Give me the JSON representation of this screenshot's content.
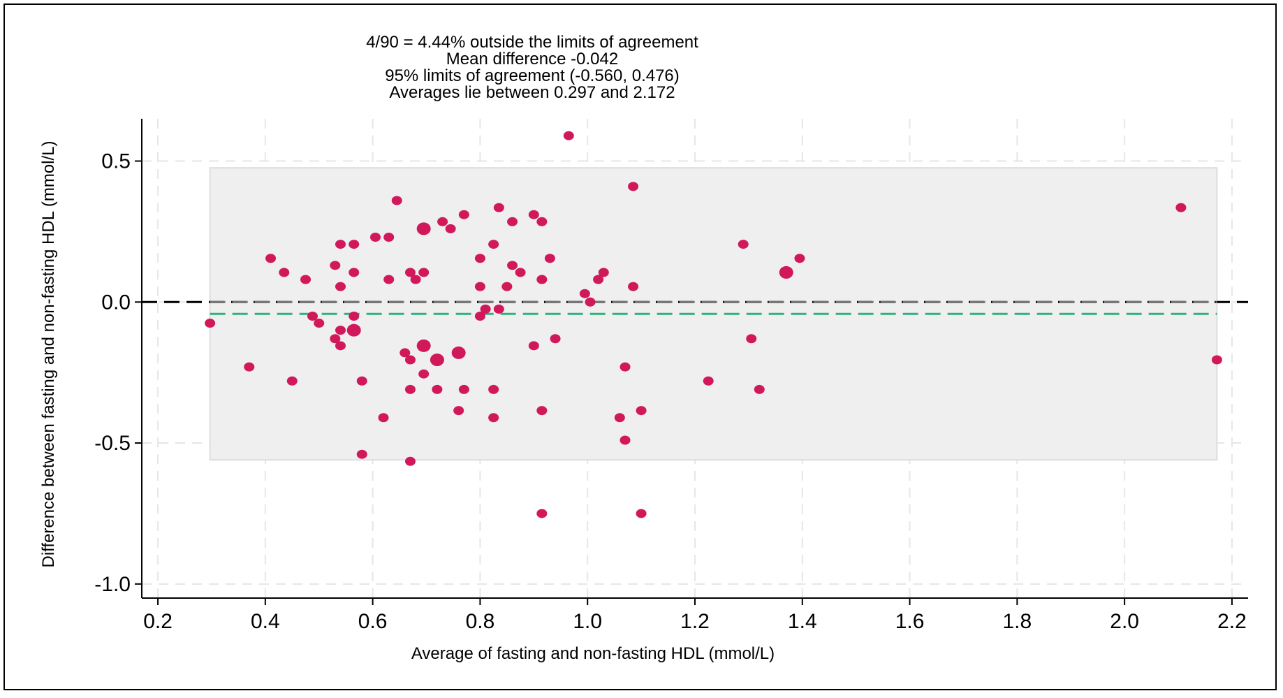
{
  "chart_data": {
    "type": "scatter",
    "title_lines": [
      "4/90 =   4.44% outside the limits of agreement",
      "Mean difference -0.042",
      "95% limits of agreement (-0.560, 0.476)",
      "Averages lie between 0.297 and 2.172"
    ],
    "xlabel": "Average of fasting and non-fasting HDL (mmol/L)",
    "ylabel": "Difference between fasting and non-fasting HDL (mmol/L)",
    "xlim": [
      0.17,
      2.23
    ],
    "ylim": [
      -1.05,
      0.65
    ],
    "xticks": [
      0.2,
      0.4,
      0.6,
      0.8,
      1.0,
      1.2,
      1.4,
      1.6,
      1.8,
      2.0,
      2.2
    ],
    "xtick_labels": [
      "0.2",
      "0.4",
      "0.6",
      "0.8",
      "1.0",
      "1.2",
      "1.4",
      "1.6",
      "1.8",
      "2.0",
      "2.2"
    ],
    "yticks": [
      0.5,
      0.0,
      -0.5,
      -1.0
    ],
    "ytick_labels": [
      "0.5",
      "0.0",
      "-0.5",
      "-1.0"
    ],
    "grid": true,
    "mean_difference": -0.042,
    "limits_of_agreement": [
      -0.56,
      0.476
    ],
    "agreement_band_x": [
      0.297,
      2.172
    ],
    "zero_line": 0,
    "colors": {
      "points": "#D0185A",
      "band": "#EFEFEF",
      "band_edge": "#DDDDDD",
      "mean_line": "#2DB37A",
      "zero_line": "#000000",
      "zero_line_inner": "#777777",
      "grid": "#E6E6E6"
    },
    "points": [
      {
        "x": 0.297,
        "y": -0.075,
        "n": 1
      },
      {
        "x": 0.37,
        "y": -0.23,
        "n": 1
      },
      {
        "x": 0.41,
        "y": 0.155,
        "n": 1
      },
      {
        "x": 0.435,
        "y": 0.105,
        "n": 1
      },
      {
        "x": 0.45,
        "y": -0.28,
        "n": 1
      },
      {
        "x": 0.475,
        "y": 0.08,
        "n": 1
      },
      {
        "x": 0.488,
        "y": -0.05,
        "n": 1
      },
      {
        "x": 0.5,
        "y": -0.075,
        "n": 1
      },
      {
        "x": 0.53,
        "y": 0.13,
        "n": 1
      },
      {
        "x": 0.53,
        "y": -0.13,
        "n": 1
      },
      {
        "x": 0.54,
        "y": 0.205,
        "n": 1
      },
      {
        "x": 0.54,
        "y": 0.055,
        "n": 1
      },
      {
        "x": 0.54,
        "y": -0.1,
        "n": 1
      },
      {
        "x": 0.54,
        "y": -0.155,
        "n": 1
      },
      {
        "x": 0.565,
        "y": 0.205,
        "n": 1
      },
      {
        "x": 0.565,
        "y": 0.105,
        "n": 1
      },
      {
        "x": 0.565,
        "y": -0.05,
        "n": 1
      },
      {
        "x": 0.565,
        "y": -0.1,
        "n": 2
      },
      {
        "x": 0.58,
        "y": -0.28,
        "n": 1
      },
      {
        "x": 0.58,
        "y": -0.54,
        "n": 1
      },
      {
        "x": 0.605,
        "y": 0.23,
        "n": 1
      },
      {
        "x": 0.62,
        "y": -0.41,
        "n": 1
      },
      {
        "x": 0.63,
        "y": 0.23,
        "n": 1
      },
      {
        "x": 0.63,
        "y": 0.08,
        "n": 1
      },
      {
        "x": 0.645,
        "y": 0.36,
        "n": 1
      },
      {
        "x": 0.66,
        "y": -0.18,
        "n": 1
      },
      {
        "x": 0.67,
        "y": 0.105,
        "n": 1
      },
      {
        "x": 0.67,
        "y": -0.205,
        "n": 1
      },
      {
        "x": 0.67,
        "y": -0.31,
        "n": 1
      },
      {
        "x": 0.67,
        "y": -0.565,
        "n": 1
      },
      {
        "x": 0.68,
        "y": 0.08,
        "n": 1
      },
      {
        "x": 0.695,
        "y": 0.26,
        "n": 2
      },
      {
        "x": 0.695,
        "y": 0.105,
        "n": 1
      },
      {
        "x": 0.695,
        "y": -0.155,
        "n": 2
      },
      {
        "x": 0.695,
        "y": -0.255,
        "n": 1
      },
      {
        "x": 0.72,
        "y": -0.205,
        "n": 2
      },
      {
        "x": 0.72,
        "y": -0.31,
        "n": 1
      },
      {
        "x": 0.73,
        "y": 0.285,
        "n": 1
      },
      {
        "x": 0.745,
        "y": 0.26,
        "n": 1
      },
      {
        "x": 0.76,
        "y": -0.18,
        "n": 2
      },
      {
        "x": 0.76,
        "y": -0.385,
        "n": 1
      },
      {
        "x": 0.77,
        "y": 0.31,
        "n": 1
      },
      {
        "x": 0.77,
        "y": -0.31,
        "n": 1
      },
      {
        "x": 0.8,
        "y": 0.155,
        "n": 1
      },
      {
        "x": 0.8,
        "y": 0.055,
        "n": 1
      },
      {
        "x": 0.8,
        "y": -0.05,
        "n": 1
      },
      {
        "x": 0.81,
        "y": -0.025,
        "n": 1
      },
      {
        "x": 0.825,
        "y": 0.205,
        "n": 1
      },
      {
        "x": 0.825,
        "y": -0.31,
        "n": 1
      },
      {
        "x": 0.825,
        "y": -0.41,
        "n": 1
      },
      {
        "x": 0.835,
        "y": 0.335,
        "n": 1
      },
      {
        "x": 0.835,
        "y": -0.025,
        "n": 1
      },
      {
        "x": 0.85,
        "y": 0.055,
        "n": 1
      },
      {
        "x": 0.86,
        "y": 0.285,
        "n": 1
      },
      {
        "x": 0.86,
        "y": 0.13,
        "n": 1
      },
      {
        "x": 0.875,
        "y": 0.105,
        "n": 1
      },
      {
        "x": 0.9,
        "y": 0.31,
        "n": 1
      },
      {
        "x": 0.9,
        "y": -0.155,
        "n": 1
      },
      {
        "x": 0.915,
        "y": 0.285,
        "n": 1
      },
      {
        "x": 0.915,
        "y": 0.08,
        "n": 1
      },
      {
        "x": 0.915,
        "y": -0.385,
        "n": 1
      },
      {
        "x": 0.915,
        "y": -0.75,
        "n": 1
      },
      {
        "x": 0.93,
        "y": 0.155,
        "n": 1
      },
      {
        "x": 0.94,
        "y": -0.13,
        "n": 1
      },
      {
        "x": 0.965,
        "y": 0.59,
        "n": 1
      },
      {
        "x": 0.995,
        "y": 0.03,
        "n": 1
      },
      {
        "x": 1.005,
        "y": 0.0,
        "n": 1
      },
      {
        "x": 1.02,
        "y": 0.08,
        "n": 1
      },
      {
        "x": 1.03,
        "y": 0.105,
        "n": 1
      },
      {
        "x": 1.06,
        "y": -0.41,
        "n": 1
      },
      {
        "x": 1.07,
        "y": -0.23,
        "n": 1
      },
      {
        "x": 1.07,
        "y": -0.49,
        "n": 1
      },
      {
        "x": 1.085,
        "y": 0.41,
        "n": 1
      },
      {
        "x": 1.085,
        "y": 0.055,
        "n": 1
      },
      {
        "x": 1.1,
        "y": -0.385,
        "n": 1
      },
      {
        "x": 1.1,
        "y": -0.75,
        "n": 1
      },
      {
        "x": 1.225,
        "y": -0.28,
        "n": 1
      },
      {
        "x": 1.29,
        "y": 0.205,
        "n": 1
      },
      {
        "x": 1.305,
        "y": -0.13,
        "n": 1
      },
      {
        "x": 1.32,
        "y": -0.31,
        "n": 1
      },
      {
        "x": 1.37,
        "y": 0.105,
        "n": 2
      },
      {
        "x": 1.395,
        "y": 0.155,
        "n": 1
      },
      {
        "x": 2.105,
        "y": 0.335,
        "n": 1
      },
      {
        "x": 2.172,
        "y": -0.205,
        "n": 1
      }
    ]
  }
}
